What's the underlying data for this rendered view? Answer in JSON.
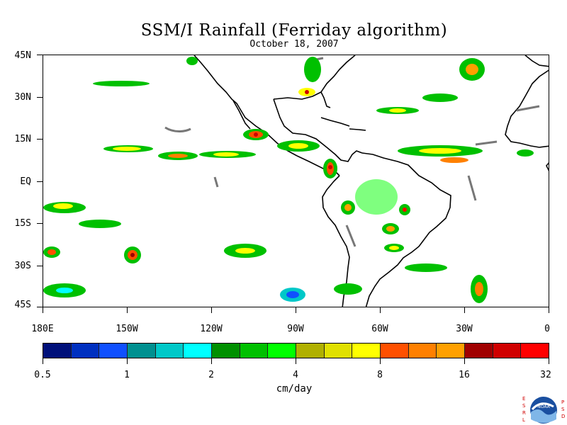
{
  "title": "SSM/I Rainfall (Ferriday algorithm)",
  "date": "October 18, 2007",
  "lat_labels": [
    "45N",
    "30N",
    "15N",
    "EQ",
    "15S",
    "30S",
    "45S"
  ],
  "lon_labels": [
    "180E",
    "150W",
    "120W",
    "90W",
    "60W",
    "30W",
    "0"
  ],
  "colorbar": {
    "colors": [
      "#00107a",
      "#0030c0",
      "#1050ff",
      "#009090",
      "#00c8c8",
      "#00ffff",
      "#009000",
      "#00c000",
      "#00ff00",
      "#b0b000",
      "#e0e000",
      "#ffff00",
      "#ff5000",
      "#ff8000",
      "#ffa000",
      "#a00000",
      "#d00000",
      "#ff0000"
    ],
    "tick_labels": [
      "0.5",
      "1",
      "2",
      "4",
      "8",
      "16",
      "32"
    ]
  },
  "units": "cm/day",
  "logo": {
    "left_letters": "ESRL",
    "right_letters": "PSD",
    "center_text": "NOAA"
  }
}
